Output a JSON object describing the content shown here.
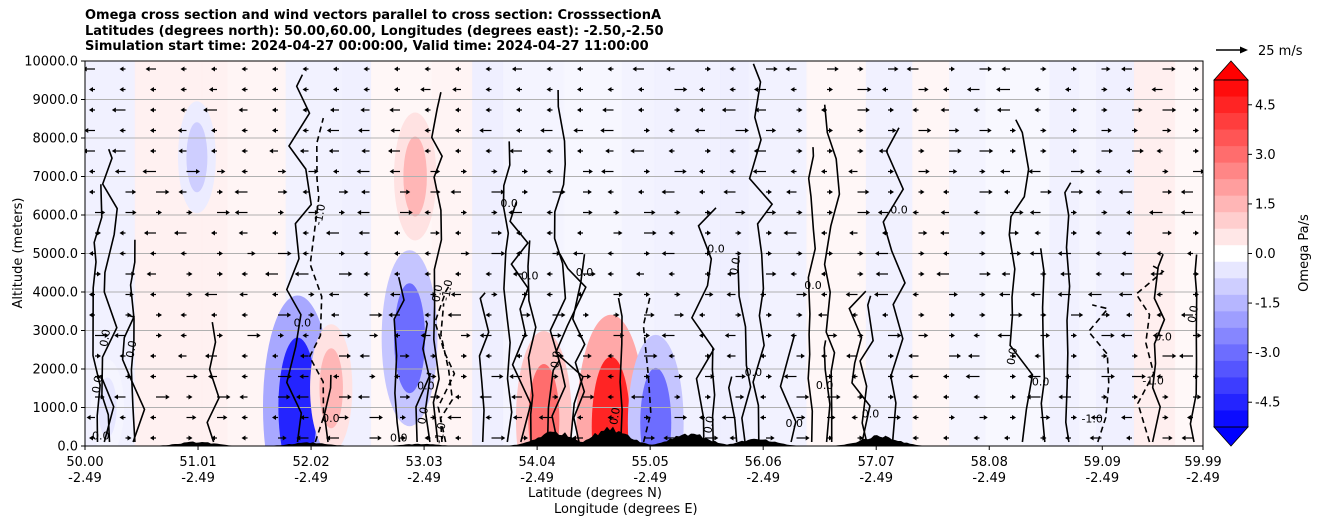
{
  "title_lines": [
    "Omega cross section and wind vectors parallel to cross section: CrosssectionA",
    "Latitudes (degrees north): 50.00,60.00, Longitudes (degrees east): -2.50,-2.50",
    "Simulation start time: 2024-04-27 00:00:00, Valid time: 2024-04-27 11:00:00"
  ],
  "chart_data": {
    "type": "heatmap",
    "ylabel": "Altitude (meters)",
    "xlabel_lat": "Latitude (degrees N)",
    "xlabel_lon": "Longitude (degrees E)",
    "ylim": [
      0,
      10000
    ],
    "yticks": [
      "0.0",
      "1000.0",
      "2000.0",
      "3000.0",
      "4000.0",
      "5000.0",
      "6000.0",
      "7000.0",
      "8000.0",
      "9000.0",
      "10000.0"
    ],
    "xticks": [
      {
        "lat": "50.00",
        "lon": "-2.49"
      },
      {
        "lat": "51.01",
        "lon": "-2.49"
      },
      {
        "lat": "52.02",
        "lon": "-2.49"
      },
      {
        "lat": "53.03",
        "lon": "-2.49"
      },
      {
        "lat": "54.04",
        "lon": "-2.49"
      },
      {
        "lat": "55.05",
        "lon": "-2.49"
      },
      {
        "lat": "56.06",
        "lon": "-2.49"
      },
      {
        "lat": "57.07",
        "lon": "-2.49"
      },
      {
        "lat": "58.08",
        "lon": "-2.49"
      },
      {
        "lat": "59.09",
        "lon": "-2.49"
      },
      {
        "lat": "59.99",
        "lon": "-2.49"
      }
    ],
    "xlim": [
      50.0,
      59.99
    ],
    "horizontal_grid": true,
    "colorbar": {
      "label": "Omega Pa/s",
      "range": [
        -5.25,
        5.25
      ],
      "ticks": [
        "-4.5",
        "-3.0",
        "-1.5",
        "0.0",
        "1.5",
        "3.0",
        "4.5"
      ],
      "colors": {
        "neg": "#0000ff",
        "zero": "#ffffff",
        "pos": "#ff0000"
      }
    },
    "quiver_key": "25 m/s",
    "contour_labels": [
      "0.0",
      "-1.0",
      "1.0"
    ],
    "omega_features": [
      {
        "lat": 51.9,
        "alt": 1000,
        "omega": -4.5
      },
      {
        "lat": 52.2,
        "alt": 1500,
        "omega": 1.5
      },
      {
        "lat": 52.9,
        "alt": 2800,
        "omega": -3.0
      },
      {
        "lat": 52.95,
        "alt": 7000,
        "omega": 1.5
      },
      {
        "lat": 54.1,
        "alt": 700,
        "omega": 3.0
      },
      {
        "lat": 54.7,
        "alt": 500,
        "omega": 4.5
      },
      {
        "lat": 55.1,
        "alt": 600,
        "omega": -3.0
      },
      {
        "lat": 51.0,
        "alt": 7500,
        "omega": -1.0
      },
      {
        "lat": 50.2,
        "alt": 1000,
        "omega": -0.5
      }
    ],
    "terrain_peaks": [
      {
        "lat": 51.0,
        "alt": 120
      },
      {
        "lat": 52.0,
        "alt": 100
      },
      {
        "lat": 53.0,
        "alt": 60
      },
      {
        "lat": 54.2,
        "alt": 420
      },
      {
        "lat": 54.7,
        "alt": 520
      },
      {
        "lat": 55.4,
        "alt": 380
      },
      {
        "lat": 56.0,
        "alt": 200
      },
      {
        "lat": 57.1,
        "alt": 300
      }
    ]
  }
}
